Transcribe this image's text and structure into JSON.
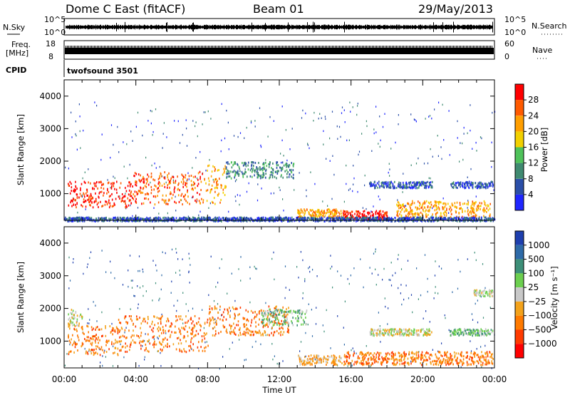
{
  "header": {
    "station": "Dome C East (fitACF)",
    "beam": "Beam 01",
    "date": "29/May/2013"
  },
  "strips": {
    "nsky_label": "N.Sky",
    "nsky_ticks": [
      "10^5",
      "10^0"
    ],
    "nsearch_label": "N.Search",
    "freq_label_1": "Freq.",
    "freq_label_2": "[MHz]",
    "freq_ticks": [
      "18",
      "8"
    ],
    "nave_label": "Nave",
    "nave_ticks": [
      "60",
      "0"
    ],
    "cpid_label": "CPID",
    "cpid_value": "twofsound 3501"
  },
  "colors": {
    "power_scale": [
      "#1f26ff",
      "#2b4fa8",
      "#3f8a70",
      "#4fc25a",
      "#f2d000",
      "#ff9e00",
      "#ff5a00",
      "#ff0000"
    ],
    "velocity_scale": [
      "#1e3fae",
      "#2e6aa8",
      "#3d8f78",
      "#6ccf4f",
      "#c8c8c8",
      "#f3a21b",
      "#ff7a00",
      "#ff3a00",
      "#ff0000"
    ]
  },
  "chart_data": [
    {
      "type": "heatmap",
      "name": "power-panel",
      "ylabel": "Slant Range [km]",
      "xlabel": "Time UT",
      "x_ticks": [
        "00:00",
        "04:00",
        "08:00",
        "12:00",
        "16:00",
        "20:00",
        "00:00"
      ],
      "xlim_hours": [
        0,
        24
      ],
      "y_ticks": [
        1000,
        2000,
        3000,
        4000
      ],
      "ylim": [
        180,
        4500
      ],
      "colorbar": {
        "label": "Power [dB]",
        "ticks": [
          "4",
          "8",
          "12",
          "16",
          "20",
          "24",
          "28"
        ]
      },
      "regions": [
        {
          "t0": 0.2,
          "t1": 3.8,
          "r0": 600,
          "r1": 1400,
          "level": 7
        },
        {
          "t0": 3.8,
          "t1": 7.8,
          "r0": 700,
          "r1": 1700,
          "level": 6
        },
        {
          "t0": 7.8,
          "t1": 9.0,
          "r0": 700,
          "r1": 1900,
          "level": 5
        },
        {
          "t0": 9.0,
          "t1": 12.8,
          "r0": 1500,
          "r1": 2000,
          "level": 2
        },
        {
          "t0": 13.0,
          "t1": 15.5,
          "r0": 300,
          "r1": 550,
          "level": 5
        },
        {
          "t0": 15.5,
          "t1": 18.0,
          "r0": 250,
          "r1": 500,
          "level": 7
        },
        {
          "t0": 17.0,
          "t1": 20.5,
          "r0": 1200,
          "r1": 1400,
          "level": 1
        },
        {
          "t0": 18.5,
          "t1": 23.8,
          "r0": 300,
          "r1": 800,
          "level": 5
        },
        {
          "t0": 21.5,
          "t1": 23.9,
          "r0": 1200,
          "r1": 1400,
          "level": 1
        },
        {
          "t0": 0.0,
          "t1": 24.0,
          "r0": 180,
          "r1": 300,
          "level": 1
        }
      ]
    },
    {
      "type": "heatmap",
      "name": "velocity-panel",
      "ylabel": "Slant Range [km]",
      "xlabel": "Time UT",
      "x_ticks": [
        "00:00",
        "04:00",
        "08:00",
        "12:00",
        "16:00",
        "20:00",
        "00:00"
      ],
      "xlim_hours": [
        0,
        24
      ],
      "y_ticks": [
        1000,
        2000,
        3000,
        4000
      ],
      "ylim": [
        180,
        4500
      ],
      "colorbar": {
        "label": "Velocity [m s⁻¹]",
        "ticks": [
          "1000",
          "500",
          "100",
          "25",
          "−25",
          "−100",
          "−500",
          "−1000"
        ]
      },
      "regions": [
        {
          "t0": 0.2,
          "t1": 3.0,
          "r0": 600,
          "r1": 1500,
          "level": 6
        },
        {
          "t0": 3.0,
          "t1": 8.0,
          "r0": 700,
          "r1": 1800,
          "level": 6
        },
        {
          "t0": 8.0,
          "t1": 12.5,
          "r0": 1200,
          "r1": 2100,
          "level": 6
        },
        {
          "t0": 11.0,
          "t1": 13.5,
          "r0": 1500,
          "r1": 2000,
          "level": 3
        },
        {
          "t0": 0.2,
          "t1": 1.0,
          "r0": 1500,
          "r1": 2000,
          "level": 4
        },
        {
          "t0": 13.0,
          "t1": 15.5,
          "r0": 300,
          "r1": 600,
          "level": 5
        },
        {
          "t0": 15.5,
          "t1": 23.9,
          "r0": 300,
          "r1": 700,
          "level": 6
        },
        {
          "t0": 17.0,
          "t1": 20.5,
          "r0": 1200,
          "r1": 1400,
          "level": 4
        },
        {
          "t0": 21.5,
          "t1": 23.9,
          "r0": 1200,
          "r1": 1400,
          "level": 3
        },
        {
          "t0": 22.8,
          "t1": 23.9,
          "r0": 2400,
          "r1": 2600,
          "level": 4
        }
      ]
    }
  ]
}
